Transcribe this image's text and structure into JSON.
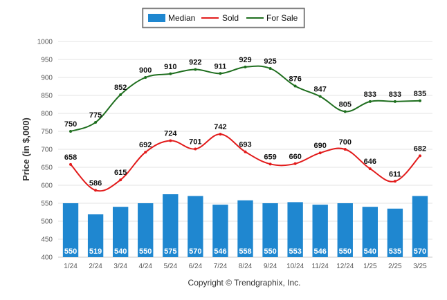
{
  "chart_data": {
    "type": "bar+line",
    "categories": [
      "1/24",
      "2/24",
      "3/24",
      "4/24",
      "5/24",
      "6/24",
      "7/24",
      "8/24",
      "9/24",
      "10/24",
      "11/24",
      "12/24",
      "1/25",
      "2/25",
      "3/25"
    ],
    "series": [
      {
        "name": "Median",
        "type": "bar",
        "color": "#1f87d0",
        "values": [
          550,
          519,
          540,
          550,
          575,
          570,
          546,
          558,
          550,
          553,
          546,
          550,
          540,
          535,
          570
        ]
      },
      {
        "name": "Sold",
        "type": "line",
        "color": "#e21b1b",
        "values": [
          658,
          586,
          615,
          692,
          724,
          701,
          742,
          693,
          659,
          660,
          690,
          700,
          646,
          611,
          682
        ]
      },
      {
        "name": "For Sale",
        "type": "line",
        "color": "#1e6e1e",
        "values": [
          750,
          775,
          852,
          900,
          910,
          922,
          911,
          929,
          925,
          876,
          847,
          805,
          833,
          833,
          835
        ]
      }
    ],
    "ylabel": "Price (in $,000)",
    "xlabel": "",
    "ylim": [
      400,
      1000
    ],
    "yticks": [
      400,
      450,
      500,
      550,
      600,
      650,
      700,
      750,
      800,
      850,
      900,
      950,
      1000
    ],
    "grid": true,
    "legend": "top-center"
  },
  "footer": {
    "copyright": "Copyright © Trendgraphix, Inc."
  }
}
